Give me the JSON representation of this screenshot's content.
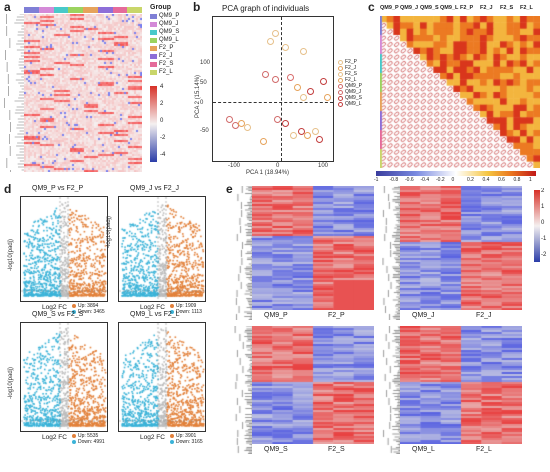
{
  "panels": {
    "a": "a",
    "b": "b",
    "c": "c",
    "d": "d",
    "e": "e"
  },
  "panel_a": {
    "legend_title": "Group",
    "groups": [
      "QM9_P",
      "QM9_J",
      "QM9_S",
      "QM9_L",
      "F2_P",
      "F2_J",
      "F2_S",
      "F2_L"
    ],
    "group_colors": [
      "#7f7fd6",
      "#d48ad8",
      "#48c9c9",
      "#9bd35f",
      "#e6a35b",
      "#8d6ed8",
      "#e56b9a",
      "#c9d66a"
    ],
    "scale_ticks": [
      "4",
      "2",
      "0",
      "-2",
      "-4"
    ]
  },
  "panel_b": {
    "title": "PCA graph of individuals",
    "xlabel": "PCA 1 (18.94%)",
    "ylabel": "PCA 2 (15.14%)",
    "xticks": [
      "-100",
      "0",
      "100"
    ],
    "yticks": [
      "100",
      "50",
      "0",
      "-50"
    ],
    "legend": [
      "F2_P",
      "F2_J",
      "F2_S",
      "F2_L",
      "QM9_P",
      "QM9_J",
      "QM9_S",
      "QM9_L"
    ]
  },
  "panel_c": {
    "col_labels": [
      "QM9_P",
      "QM9_J",
      "QM9_S",
      "QM9_L",
      "F2_P",
      "F2_J",
      "F2_S",
      "F2_L"
    ],
    "scale_ticks": [
      "-1",
      "-0.8",
      "-0.6",
      "-0.4",
      "-0.2",
      "0",
      "0.2",
      "0.4",
      "0.6",
      "0.8",
      "1"
    ]
  },
  "panel_d": {
    "plots": [
      {
        "title": "QM9_P vs F2_P",
        "xlabel": "Log2 FC",
        "up": "Up: 3894",
        "down": "Down: 3465"
      },
      {
        "title": "QM9_J vs F2_J",
        "xlabel": "Log2 FC",
        "up": "Up: 1909",
        "down": "Down: 1113"
      },
      {
        "title": "QM9_S vs F2_S",
        "xlabel": "Log2 FC",
        "up": "Up: 5535",
        "down": "Down: 4991"
      },
      {
        "title": "QM9_L vs F2_L",
        "xlabel": "Log2 FC",
        "up": "Up: 3901",
        "down": "Down: 3165"
      }
    ],
    "ylabel": "-log10(padj)"
  },
  "panel_e": {
    "heatmaps": [
      {
        "left": "QM9_P",
        "right": "F2_P"
      },
      {
        "left": "QM9_J",
        "right": "F2_J"
      },
      {
        "left": "QM9_S",
        "right": "F2_S"
      },
      {
        "left": "QM9_L",
        "right": "F2_L"
      }
    ],
    "scale_ticks": [
      "2",
      "1",
      "0",
      "-1",
      "-2"
    ]
  },
  "colors": {
    "red": "#e0383b",
    "blue": "#3b4fb0",
    "white": "#f4f1f1",
    "cyan": "#3bb3d8",
    "orange": "#e2803a",
    "gray": "#bdbdbd"
  }
}
